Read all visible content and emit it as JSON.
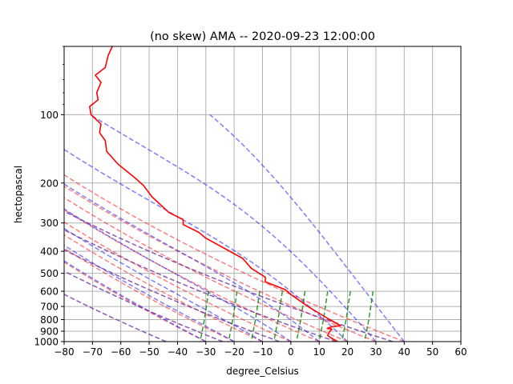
{
  "chart_data": {
    "type": "line",
    "title": "(no skew) AMA -- 2020-09-23 12:00:00",
    "xlabel": "degree_Celsius",
    "ylabel": "hectopascal",
    "xlim": [
      -80,
      60
    ],
    "ylim_hPa": [
      1000,
      50
    ],
    "y_scale": "log",
    "grid": true,
    "x_ticks": [
      -80,
      -70,
      -60,
      -50,
      -40,
      -30,
      -20,
      -10,
      0,
      10,
      20,
      30,
      40,
      50,
      60
    ],
    "y_tick_labels": [
      100,
      200,
      300,
      400,
      500,
      600,
      700,
      800,
      900,
      1000
    ],
    "series": [
      {
        "role": "temperature",
        "color": "#ff0000",
        "style": "solid",
        "points": [
          [
            16.5,
            1000
          ],
          [
            14.0,
            960
          ],
          [
            13.0,
            940
          ],
          [
            13.5,
            910
          ],
          [
            14.5,
            880
          ],
          [
            12.8,
            875
          ],
          [
            14.5,
            860
          ],
          [
            17.5,
            850
          ],
          [
            13.0,
            790
          ],
          [
            6.0,
            700
          ],
          [
            0.0,
            620
          ],
          [
            -2.0,
            590
          ],
          [
            -9.0,
            545
          ],
          [
            -9.0,
            520
          ],
          [
            -14.0,
            475
          ],
          [
            -17.0,
            430
          ],
          [
            -30.0,
            350
          ],
          [
            -32.5,
            330
          ],
          [
            -38.0,
            305
          ],
          [
            -38.0,
            290
          ],
          [
            -43.0,
            270
          ],
          [
            -49.0,
            230
          ],
          [
            -52.0,
            205
          ],
          [
            -55.0,
            190
          ],
          [
            -61.0,
            165
          ],
          [
            -65.0,
            145
          ],
          [
            -65.5,
            130
          ],
          [
            -67.5,
            120
          ],
          [
            -67.0,
            110
          ],
          [
            -70.5,
            100
          ],
          [
            -71.0,
            92
          ],
          [
            -68.0,
            86
          ],
          [
            -68.5,
            80
          ],
          [
            -67.0,
            72
          ],
          [
            -69.0,
            67
          ],
          [
            -65.5,
            62
          ],
          [
            -64.5,
            55
          ],
          [
            -63.0,
            50
          ],
          [
            -61.5,
            48
          ]
        ]
      }
    ],
    "reference_lines": {
      "dry_adiabats": {
        "color": "#ff0000",
        "alpha": 0.5,
        "style": "dashed"
      },
      "moist_adiabats": {
        "color": "#0000ff",
        "alpha": 0.5,
        "style": "dashed"
      },
      "mixing_ratio": {
        "color": "#008000",
        "alpha": 0.8,
        "style": "dashed"
      },
      "isotherms_purple": {
        "color": "#7030a0",
        "alpha": 0.8,
        "style": "dashed"
      }
    }
  }
}
